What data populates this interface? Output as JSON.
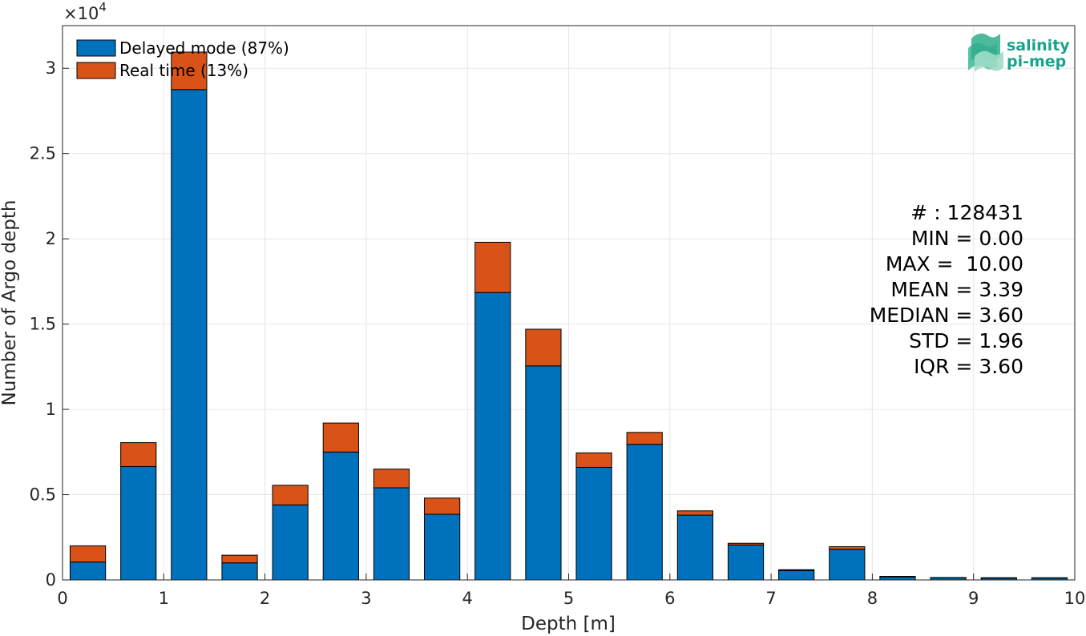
{
  "chart_data": {
    "type": "bar",
    "stacked": true,
    "x": [
      0.25,
      0.75,
      1.25,
      1.75,
      2.25,
      2.75,
      3.25,
      3.75,
      4.25,
      4.75,
      5.25,
      5.75,
      6.25,
      6.75,
      7.25,
      7.75,
      8.25,
      8.75,
      9.25,
      9.75
    ],
    "bin_width": 0.5,
    "series": [
      {
        "name": "Delayed mode (87%)",
        "color": "#0072BD",
        "values": [
          1050,
          6650,
          28750,
          1000,
          4400,
          7500,
          5400,
          3850,
          16850,
          12550,
          6600,
          7950,
          3800,
          2050,
          550,
          1800,
          180,
          120,
          100,
          110
        ]
      },
      {
        "name": "Real time (13%)",
        "color": "#D95319",
        "values": [
          950,
          1400,
          2200,
          450,
          1150,
          1700,
          1100,
          950,
          2950,
          2150,
          850,
          700,
          250,
          100,
          50,
          150,
          30,
          20,
          30,
          20
        ]
      }
    ],
    "xlabel": "Depth [m]",
    "ylabel": "Number of Argo depth",
    "xlim": [
      0,
      10
    ],
    "ylim": [
      0,
      32500
    ],
    "xticks": [
      "0",
      "1",
      "2",
      "3",
      "4",
      "5",
      "6",
      "7",
      "8",
      "9",
      "10"
    ],
    "yticks": [
      "0",
      "0.5",
      "1",
      "1.5",
      "2",
      "2.5",
      "3"
    ],
    "y_exponent_label": "×10",
    "y_exponent_power": "4",
    "grid": true,
    "legend_position": "top-left",
    "stats": [
      "# : 128431",
      "MIN = 0.00",
      "MAX =  10.00",
      "MEAN = 3.39",
      "MEDIAN = 3.60",
      "STD = 1.96",
      "IQR = 3.60"
    ]
  },
  "logo": {
    "line1": "salinity",
    "line2": "pi-mep",
    "color": "#1aa38a"
  }
}
